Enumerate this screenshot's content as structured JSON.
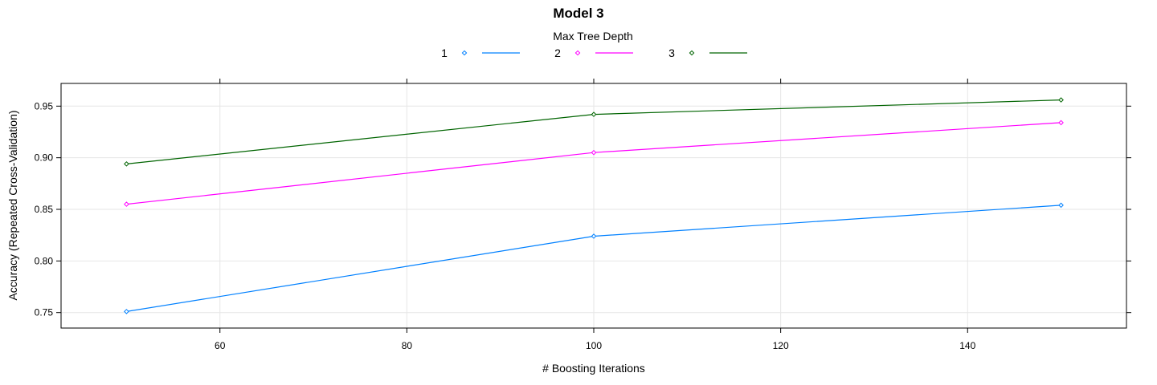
{
  "chart_data": {
    "type": "line",
    "title": "Model 3",
    "xlabel": "# Boosting Iterations",
    "ylabel": "Accuracy (Repeated Cross-Validation)",
    "legend": {
      "title": "Max Tree Depth",
      "placement": "top-center"
    },
    "x": [
      50,
      100,
      150
    ],
    "xlim": [
      43,
      157
    ],
    "ylim": [
      0.735,
      0.972
    ],
    "xticks": [
      60,
      80,
      100,
      120,
      140
    ],
    "yticks": [
      0.75,
      0.8,
      0.85,
      0.9,
      0.95
    ],
    "ytick_labels": [
      "0.75",
      "0.80",
      "0.85",
      "0.90",
      "0.95"
    ],
    "grid": true,
    "series": [
      {
        "name": "1",
        "color": "#0080ff",
        "values": [
          0.751,
          0.824,
          0.854
        ]
      },
      {
        "name": "2",
        "color": "#ff00ff",
        "values": [
          0.855,
          0.905,
          0.934
        ]
      },
      {
        "name": "3",
        "color": "#006400",
        "values": [
          0.894,
          0.942,
          0.956
        ]
      }
    ]
  }
}
